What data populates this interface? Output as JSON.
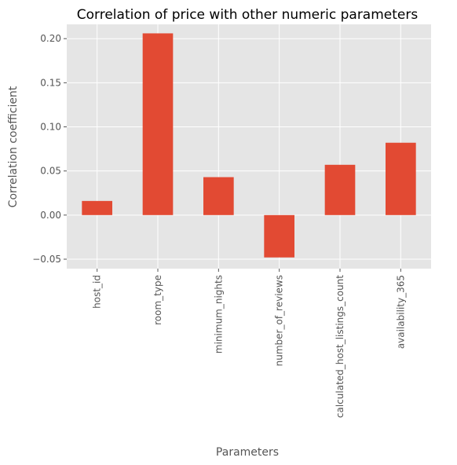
{
  "chart_data": {
    "type": "bar",
    "title": "Correlation of price with other numeric parameters",
    "xlabel": "Parameters",
    "ylabel": "Correlation coefficient",
    "categories": [
      "host_id",
      "room_type",
      "minimum_nights",
      "number_of_reviews",
      "calculated_host_listings_count",
      "availability_365"
    ],
    "values": [
      0.016,
      0.206,
      0.043,
      -0.048,
      0.057,
      0.082
    ],
    "yticks": [
      "−0.05",
      "0.00",
      "0.05",
      "0.10",
      "0.15",
      "0.20"
    ],
    "ytick_values": [
      -0.05,
      0.0,
      0.05,
      0.1,
      0.15,
      0.2
    ],
    "ylim": [
      -0.0607,
      0.2162
    ],
    "grid": true,
    "colors": {
      "bar": "#E24A33",
      "plot_bg": "#E5E5E5",
      "grid": "#FFFFFF"
    }
  }
}
